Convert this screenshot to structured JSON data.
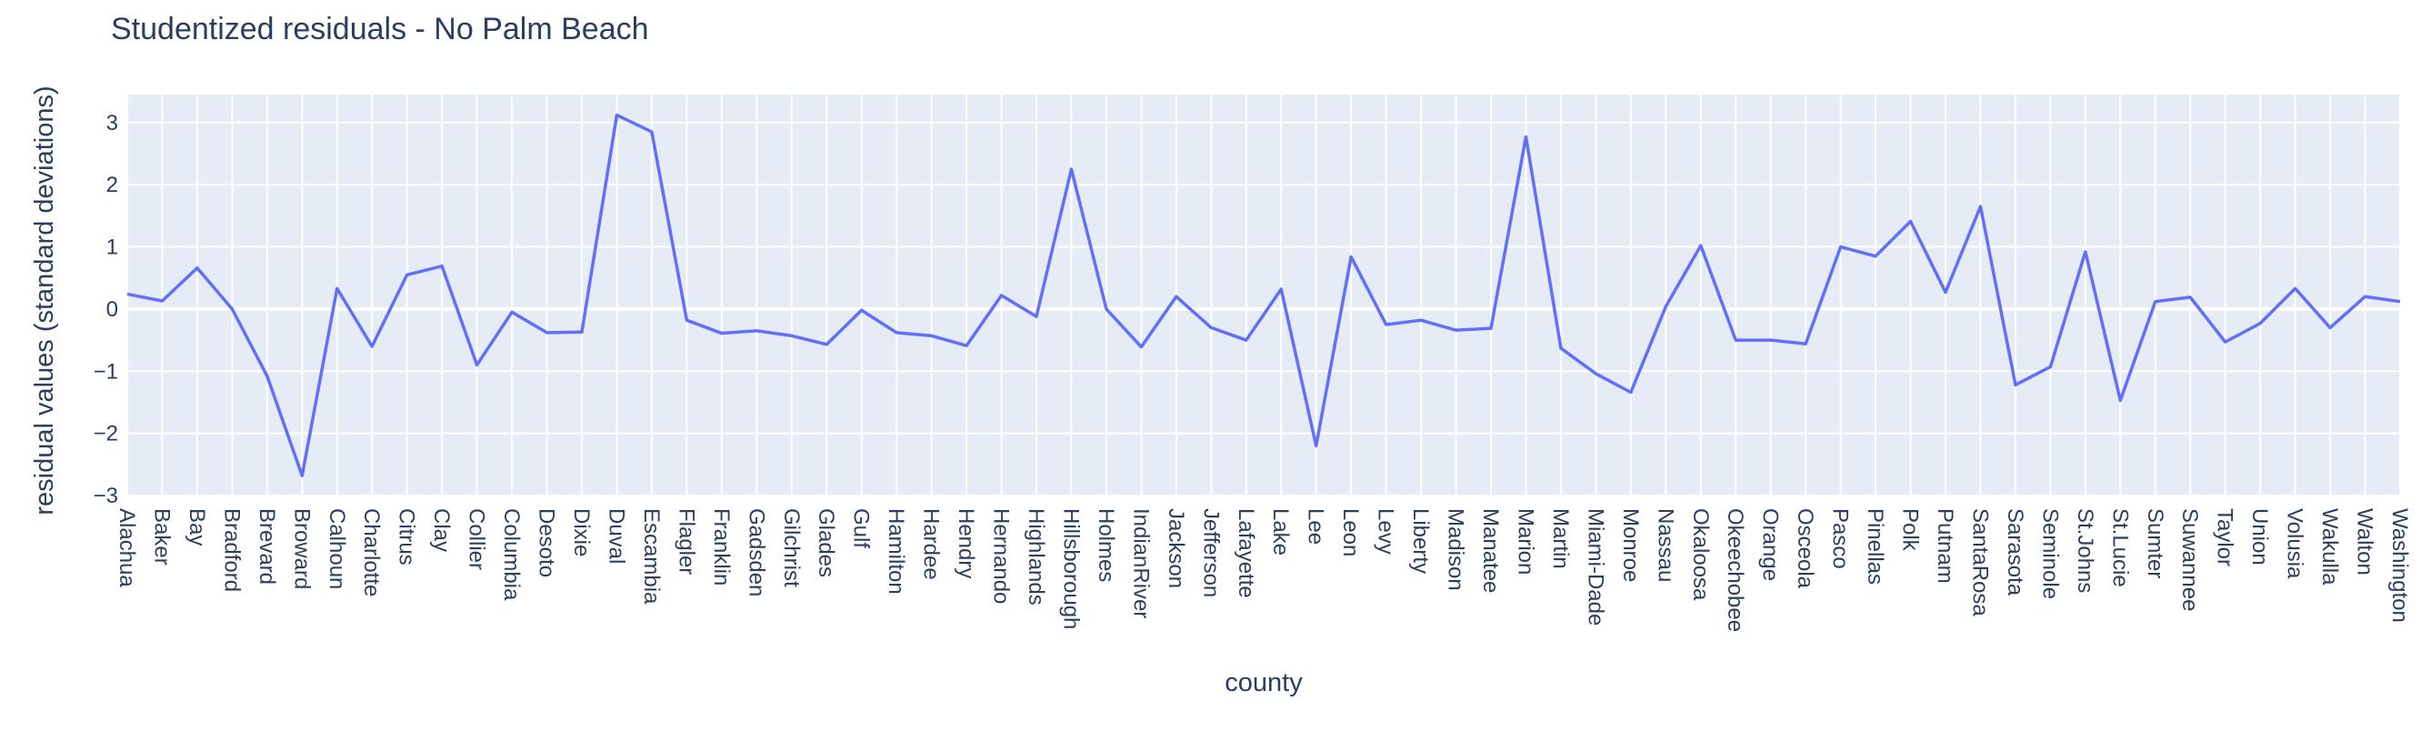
{
  "chart_data": {
    "type": "line",
    "title": "Studentized residuals - No Palm Beach",
    "xlabel": "county",
    "ylabel": "residual values (standard deviations)",
    "ylim": [
      -3,
      3.45
    ],
    "yticks": [
      3,
      2,
      1,
      0,
      -1,
      -2,
      -3
    ],
    "ytick_labels": [
      "3",
      "2",
      "1",
      "0",
      "−1",
      "−2",
      "−3"
    ],
    "grid": true,
    "legend": "none",
    "colors": {
      "line": "#636efa",
      "plot_bg": "#e5ecf6",
      "grid": "#ffffff",
      "text": "#2a3f5f"
    },
    "series": [
      {
        "x": [
          "Alachua",
          "Baker",
          "Bay",
          "Bradford",
          "Brevard",
          "Broward",
          "Calhoun",
          "Charlotte",
          "Citrus",
          "Clay",
          "Collier",
          "Columbia",
          "Desoto",
          "Dixie",
          "Duval",
          "Escambia",
          "Flagler",
          "Franklin",
          "Gadsden",
          "Gilchrist",
          "Glades",
          "Gulf",
          "Hamilton",
          "Hardee",
          "Hendry",
          "Hernando",
          "Highlands",
          "Hillsborough",
          "Holmes",
          "IndianRiver",
          "Jackson",
          "Jefferson",
          "Lafayette",
          "Lake",
          "Lee",
          "Leon",
          "Levy",
          "Liberty",
          "Madison",
          "Manatee",
          "Marion",
          "Martin",
          "Miami-Dade",
          "Monroe",
          "Nassau",
          "Okaloosa",
          "Okeechobee",
          "Orange",
          "Osceola",
          "Pasco",
          "Pinellas",
          "Polk",
          "Putnam",
          "SantaRosa",
          "Sarasota",
          "Seminole",
          "St.Johns",
          "St.Lucie",
          "Sumter",
          "Suwannee",
          "Taylor",
          "Union",
          "Volusia",
          "Wakulla",
          "Walton",
          "Washington"
        ],
        "y": [
          0.24,
          0.13,
          0.66,
          0.0,
          -1.08,
          -2.68,
          0.33,
          -0.6,
          0.55,
          0.69,
          -0.9,
          -0.05,
          -0.38,
          -0.37,
          3.12,
          2.85,
          -0.18,
          -0.39,
          -0.35,
          -0.43,
          -0.57,
          -0.02,
          -0.38,
          -0.43,
          -0.59,
          0.22,
          -0.12,
          2.25,
          0.0,
          -0.61,
          0.2,
          -0.3,
          -0.5,
          0.32,
          -2.2,
          0.84,
          -0.25,
          -0.18,
          -0.34,
          -0.31,
          2.77,
          -0.63,
          -1.04,
          -1.34,
          0.04,
          1.02,
          -0.5,
          -0.5,
          -0.56,
          1.0,
          0.85,
          1.41,
          0.27,
          1.65,
          -1.22,
          -0.93,
          0.92,
          -1.47,
          0.12,
          0.19,
          -0.53,
          -0.23,
          0.33,
          -0.3,
          0.2,
          0.12
        ]
      }
    ]
  }
}
